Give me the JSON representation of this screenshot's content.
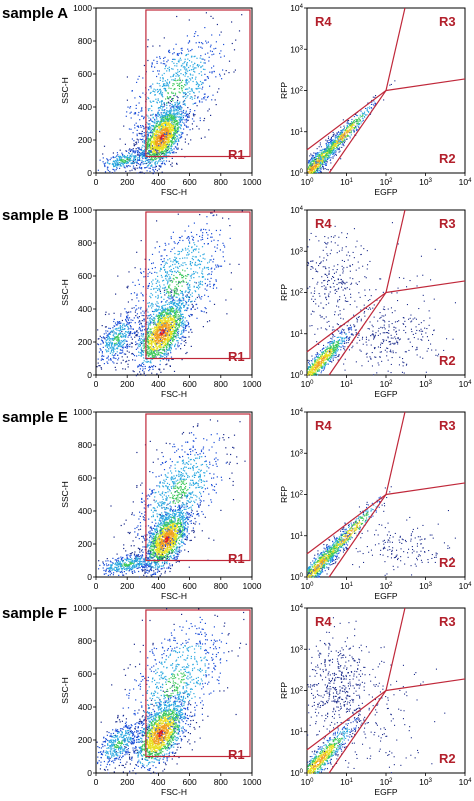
{
  "chart_data": [
    {
      "type": "scatter",
      "panel": "scatter-left",
      "sample": "sample A",
      "xlabel": "FSC-H",
      "ylabel": "SSC-H",
      "xlim": [
        0,
        1000
      ],
      "ylim": [
        0,
        1000
      ],
      "xticks": [
        "0",
        "200",
        "400",
        "600",
        "800",
        "1000"
      ],
      "yticks": [
        "0",
        "200",
        "400",
        "600",
        "800",
        "1000"
      ],
      "gate": {
        "label": "R1",
        "x": [
          320,
          1000
        ],
        "y": [
          100,
          1000
        ]
      },
      "clusters": [
        {
          "x": 420,
          "y": 220,
          "sx": 70,
          "sy": 110,
          "weight": 0.6
        },
        {
          "x": 500,
          "y": 500,
          "sx": 150,
          "sy": 220,
          "weight": 0.3
        },
        {
          "x": 180,
          "y": 80,
          "sx": 90,
          "sy": 40,
          "weight": 0.1
        }
      ]
    },
    {
      "type": "scatter",
      "panel": "scatter-right",
      "sample": "sample A",
      "xlabel": "EGFP",
      "ylabel": "RFP",
      "scale": "log",
      "xlim": [
        1,
        10000
      ],
      "ylim": [
        1,
        10000
      ],
      "xticks": [
        "10^0",
        "10^1",
        "10^2",
        "10^3",
        "10^4"
      ],
      "yticks": [
        "10^0",
        "10^1",
        "10^2",
        "10^3",
        "10^4"
      ],
      "regions": [
        "R4",
        "R3",
        "R2"
      ],
      "clusters": [
        {
          "x": 1.5,
          "y": 1.5,
          "sx": 0.4,
          "sy": 0.4,
          "weight": 0.7,
          "diag": true
        },
        {
          "x": 8,
          "y": 8,
          "sx": 0.4,
          "sy": 0.3,
          "weight": 0.3,
          "diag": true
        }
      ]
    },
    {
      "type": "scatter",
      "panel": "scatter-left",
      "sample": "sample B",
      "xlabel": "FSC-H",
      "ylabel": "SSC-H",
      "xlim": [
        0,
        1000
      ],
      "ylim": [
        0,
        1000
      ],
      "xticks": [
        "0",
        "200",
        "400",
        "600",
        "800",
        "1000"
      ],
      "yticks": [
        "0",
        "200",
        "400",
        "600",
        "800",
        "1000"
      ],
      "gate": {
        "label": "R1",
        "x": [
          320,
          1000
        ],
        "y": [
          100,
          1000
        ]
      },
      "clusters": [
        {
          "x": 420,
          "y": 260,
          "sx": 80,
          "sy": 120,
          "weight": 0.55
        },
        {
          "x": 520,
          "y": 560,
          "sx": 160,
          "sy": 230,
          "weight": 0.3
        },
        {
          "x": 130,
          "y": 220,
          "sx": 60,
          "sy": 90,
          "weight": 0.15
        }
      ]
    },
    {
      "type": "scatter",
      "panel": "scatter-right",
      "sample": "sample B",
      "xlabel": "EGFP",
      "ylabel": "RFP",
      "scale": "log",
      "xlim": [
        1,
        10000
      ],
      "ylim": [
        1,
        10000
      ],
      "xticks": [
        "10^0",
        "10^1",
        "10^2",
        "10^3",
        "10^4"
      ],
      "yticks": [
        "10^0",
        "10^1",
        "10^2",
        "10^3",
        "10^4"
      ],
      "regions": [
        "R4",
        "R3",
        "R2"
      ],
      "clusters": [
        {
          "x": 2,
          "y": 2,
          "sx": 0.4,
          "sy": 0.4,
          "weight": 0.6,
          "diag": true
        },
        {
          "x": 4,
          "y": 200,
          "sx": 0.4,
          "sy": 0.6,
          "weight": 0.15
        },
        {
          "x": 120,
          "y": 8,
          "sx": 0.6,
          "sy": 0.35,
          "weight": 0.15
        },
        {
          "x": 30,
          "y": 30,
          "sx": 0.9,
          "sy": 0.9,
          "weight": 0.1
        }
      ]
    },
    {
      "type": "scatter",
      "panel": "scatter-left",
      "sample": "sample E",
      "xlabel": "FSC-H",
      "ylabel": "SSC-H",
      "xlim": [
        0,
        1000
      ],
      "ylim": [
        0,
        1000
      ],
      "xticks": [
        "0",
        "200",
        "400",
        "600",
        "800",
        "1000"
      ],
      "yticks": [
        "0",
        "200",
        "400",
        "600",
        "800",
        "1000"
      ],
      "gate": {
        "label": "R1",
        "x": [
          320,
          1000
        ],
        "y": [
          100,
          1000
        ]
      },
      "clusters": [
        {
          "x": 450,
          "y": 230,
          "sx": 70,
          "sy": 110,
          "weight": 0.55
        },
        {
          "x": 530,
          "y": 520,
          "sx": 140,
          "sy": 210,
          "weight": 0.3
        },
        {
          "x": 200,
          "y": 80,
          "sx": 100,
          "sy": 40,
          "weight": 0.15
        }
      ]
    },
    {
      "type": "scatter",
      "panel": "scatter-right",
      "sample": "sample E",
      "xlabel": "EGFP",
      "ylabel": "RFP",
      "scale": "log",
      "xlim": [
        1,
        10000
      ],
      "ylim": [
        1,
        10000
      ],
      "xticks": [
        "10^0",
        "10^1",
        "10^2",
        "10^3",
        "10^4"
      ],
      "yticks": [
        "10^0",
        "10^1",
        "10^2",
        "10^3",
        "10^4"
      ],
      "regions": [
        "R4",
        "R3",
        "R2"
      ],
      "clusters": [
        {
          "x": 2,
          "y": 2,
          "sx": 0.4,
          "sy": 0.4,
          "weight": 0.65,
          "diag": true
        },
        {
          "x": 10,
          "y": 10,
          "sx": 0.45,
          "sy": 0.35,
          "weight": 0.25,
          "diag": true
        },
        {
          "x": 200,
          "y": 5,
          "sx": 0.6,
          "sy": 0.3,
          "weight": 0.1
        }
      ]
    },
    {
      "type": "scatter",
      "panel": "scatter-left",
      "sample": "sample F",
      "xlabel": "FSC-H",
      "ylabel": "SSC-H",
      "xlim": [
        0,
        1000
      ],
      "ylim": [
        0,
        1000
      ],
      "xticks": [
        "0",
        "200",
        "400",
        "600",
        "800",
        "1000"
      ],
      "yticks": [
        "0",
        "200",
        "400",
        "600",
        "800",
        "1000"
      ],
      "gate": {
        "label": "R1",
        "x": [
          320,
          1000
        ],
        "y": [
          100,
          1000
        ]
      },
      "clusters": [
        {
          "x": 410,
          "y": 240,
          "sx": 80,
          "sy": 120,
          "weight": 0.55
        },
        {
          "x": 500,
          "y": 540,
          "sx": 160,
          "sy": 230,
          "weight": 0.3
        },
        {
          "x": 140,
          "y": 180,
          "sx": 70,
          "sy": 80,
          "weight": 0.15
        }
      ]
    },
    {
      "type": "scatter",
      "panel": "scatter-right",
      "sample": "sample F",
      "xlabel": "EGFP",
      "ylabel": "RFP",
      "scale": "log",
      "xlim": [
        1,
        10000
      ],
      "ylim": [
        1,
        10000
      ],
      "xticks": [
        "10^0",
        "10^1",
        "10^2",
        "10^3",
        "10^4"
      ],
      "yticks": [
        "10^0",
        "10^1",
        "10^2",
        "10^3",
        "10^4"
      ],
      "regions": [
        "R4",
        "R3",
        "R2"
      ],
      "clusters": [
        {
          "x": 2,
          "y": 2,
          "sx": 0.45,
          "sy": 0.45,
          "weight": 0.6,
          "diag": true
        },
        {
          "x": 5,
          "y": 150,
          "sx": 0.4,
          "sy": 0.6,
          "weight": 0.25
        },
        {
          "x": 25,
          "y": 25,
          "sx": 0.8,
          "sy": 0.8,
          "weight": 0.15
        }
      ]
    }
  ],
  "colors": {
    "gate": "#c0283a",
    "region_label": "#b3202c",
    "scale": [
      "#1a2a8a",
      "#1d4fd8",
      "#2aa8e0",
      "#3cc85a",
      "#e8e020",
      "#f0a020",
      "#e02020"
    ]
  }
}
